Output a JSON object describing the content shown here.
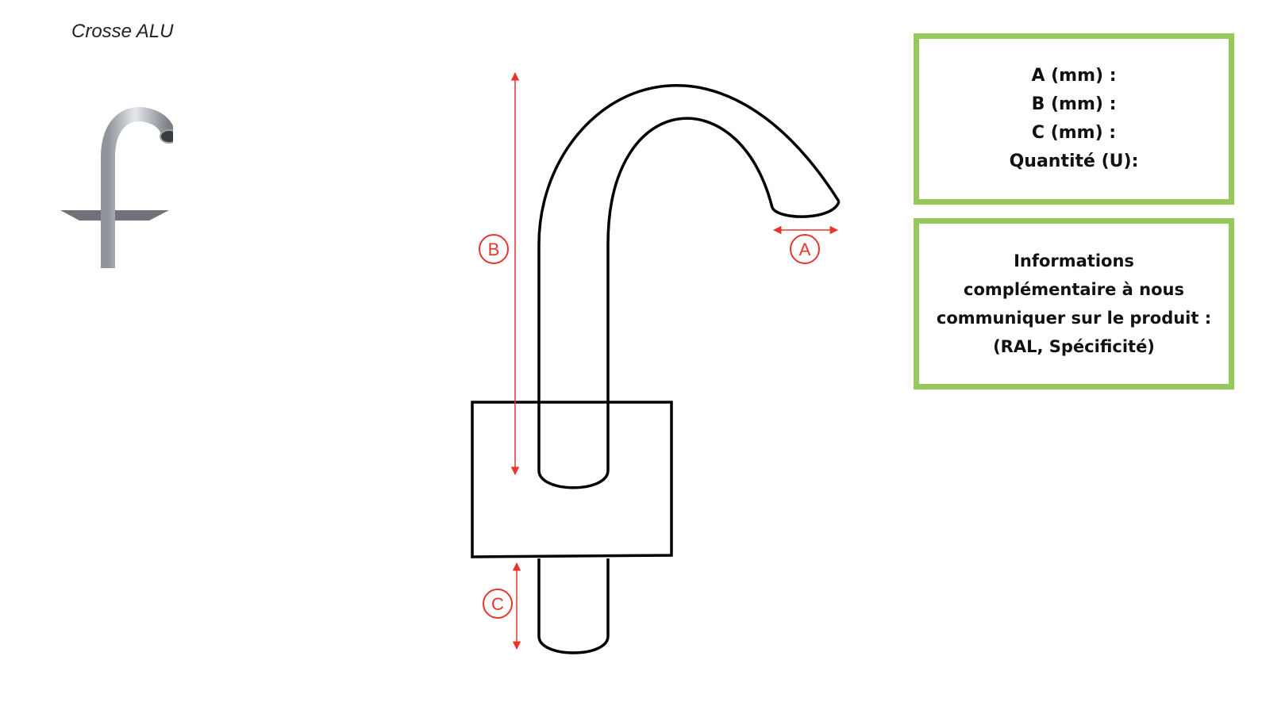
{
  "product": {
    "title": "Crosse ALU"
  },
  "diagram": {
    "labels": {
      "a": "A",
      "b": "B",
      "c": "C"
    },
    "colors": {
      "outline": "#000000",
      "dimension": "#e8352b"
    }
  },
  "dimensions_box": {
    "fields": [
      "A (mm) :",
      "B (mm) :",
      "C (mm) :",
      "Quantité (U):"
    ]
  },
  "info_box": {
    "lines": [
      "Informations",
      "complémentaire à nous",
      "communiquer sur le produit :",
      "(RAL, Spécificité)"
    ]
  },
  "colors": {
    "box_border": "#96c85a"
  }
}
